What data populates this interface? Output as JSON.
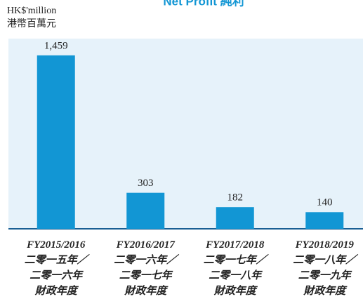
{
  "chart_data": {
    "type": "bar",
    "title": "Net Profit 純利",
    "unit_label": "HK$'million\n港幣百萬元",
    "categories": [
      "FY2015/2016\n二零一五年／\n二零一六年\n財政年度",
      "FY2016/2017\n二零一六年／\n二零一七年\n財政年度",
      "FY2017/2018\n二零一七年／\n二零一八年\n財政年度",
      "FY2018/2019\n二零一八年／\n二零一九年\n財政年度"
    ],
    "values": [
      1459,
      303,
      182,
      140
    ],
    "value_labels": [
      "1,459",
      "303",
      "182",
      "140"
    ],
    "color": "#1296d4",
    "ylim": [
      0,
      1600
    ]
  }
}
